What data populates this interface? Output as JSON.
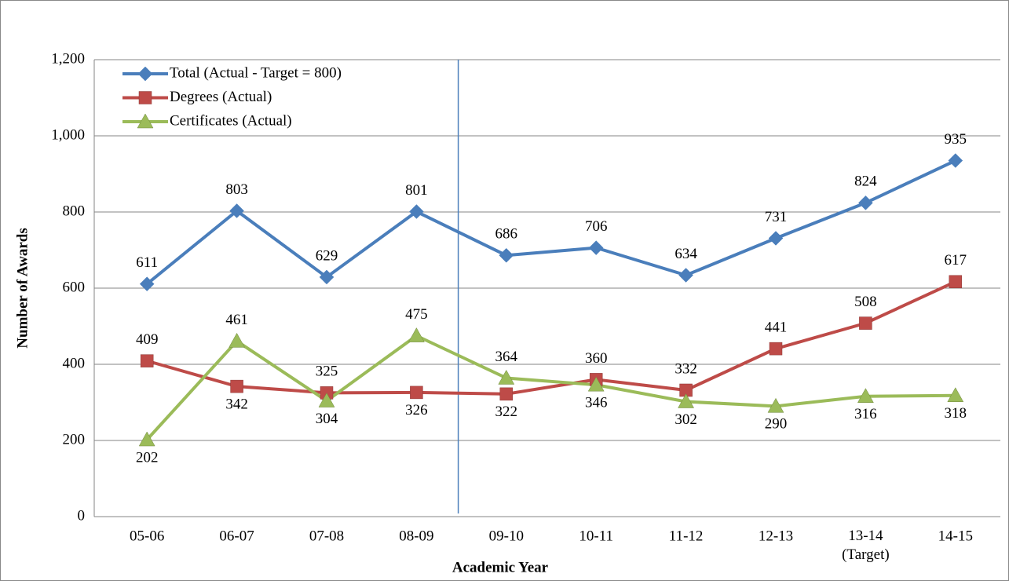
{
  "chart_data": {
    "type": "line",
    "x_label": "Academic Year",
    "y_label": "Number of Awards",
    "categories": [
      "05-06",
      "06-07",
      "07-08",
      "08-09",
      "09-10",
      "10-11",
      "11-12",
      "12-13",
      "13-14\n(Target)",
      "14-15"
    ],
    "series": [
      {
        "name": "Total (Actual - Target = 800)",
        "color": "#4a7ebb",
        "marker": "diamond",
        "values": [
          611,
          803,
          629,
          801,
          686,
          706,
          634,
          731,
          824,
          935
        ]
      },
      {
        "name": "Degrees (Actual)",
        "color": "#be4b48",
        "marker": "square",
        "values": [
          409,
          342,
          325,
          326,
          322,
          360,
          332,
          441,
          508,
          617
        ]
      },
      {
        "name": "Certificates (Actual)",
        "color": "#9bbb59",
        "marker": "triangle",
        "values": [
          202,
          461,
          304,
          475,
          364,
          346,
          302,
          290,
          316,
          318
        ]
      }
    ],
    "ylim": [
      0,
      1200
    ],
    "yticks": [
      0,
      200,
      400,
      600,
      800,
      {
        "value": 1000,
        "label": "1,000"
      },
      {
        "value": 1200,
        "label": "1,200"
      }
    ],
    "grid": true,
    "legend": "top-left"
  }
}
